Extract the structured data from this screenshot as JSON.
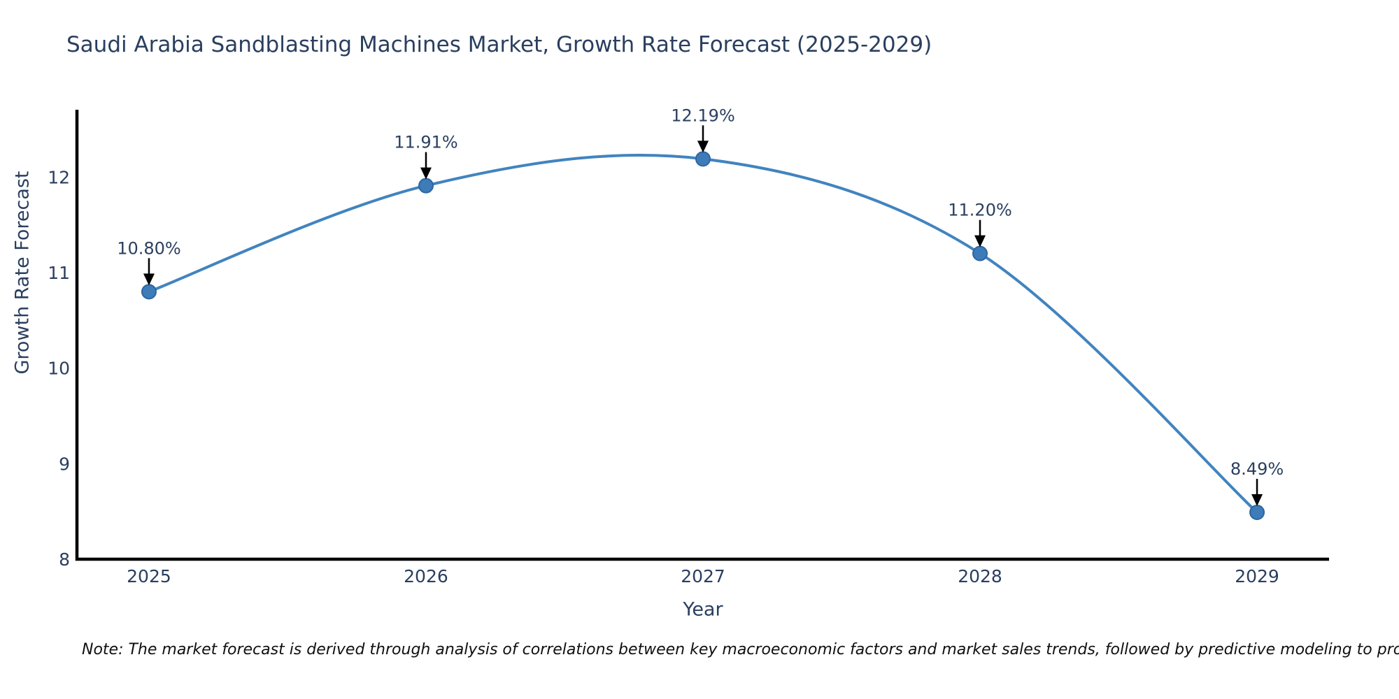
{
  "title": "Saudi Arabia Sandblasting Machines Market, Growth Rate Forecast (2025-2029)",
  "note": "Note: The market forecast is derived through analysis of correlations between key macroeconomic factors and market sales trends, followed by predictive modeling to project future sales",
  "chart_data": {
    "type": "line",
    "title": "Saudi Arabia Sandblasting Machines Market, Growth Rate Forecast (2025-2029)",
    "x": [
      2025,
      2026,
      2027,
      2028,
      2029
    ],
    "series": [
      {
        "name": "Growth Rate Forecast",
        "values": [
          10.8,
          11.91,
          12.19,
          11.2,
          8.49
        ],
        "point_labels": [
          "10.80%",
          "11.91%",
          "12.19%",
          "11.20%",
          "8.49%"
        ]
      }
    ],
    "xlabel": "Year",
    "ylabel": "Growth Rate Forecast",
    "xticks": [
      2025,
      2026,
      2027,
      2028,
      2029
    ],
    "yticks": [
      8,
      9,
      10,
      11,
      12
    ],
    "xlim": [
      2024.74,
      2029.26
    ],
    "ylim": [
      8,
      12.69
    ],
    "grid": false,
    "legend": "none",
    "line_shape": "spline",
    "annotations_arrow": true,
    "colors": {
      "line": "#4184bf",
      "marker_fill": "#3d7cb8",
      "marker_edge": "#2f66a0",
      "axis": "#000000",
      "tick_text": "#2a3f5f",
      "title_text": "#2a3f5f",
      "annotation_text": "#2a3f5f",
      "annotation_arrow": "#000000",
      "background": "#ffffff"
    }
  }
}
